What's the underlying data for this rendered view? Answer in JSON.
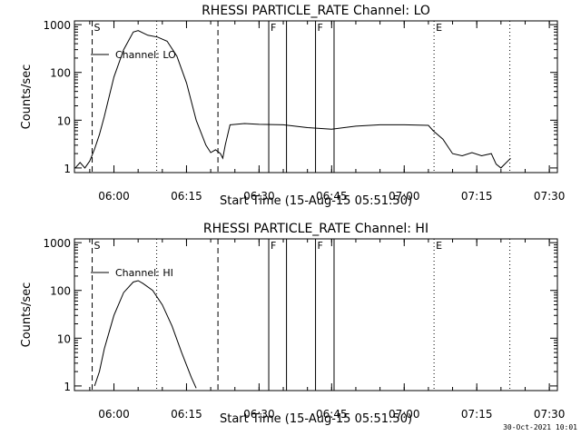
{
  "chart_data": [
    {
      "type": "line",
      "title": "RHESSI PARTICLE_RATE Channel: LO",
      "xlabel": "Start Time (15-Aug-15 05:51:50)",
      "ylabel": "Counts/sec",
      "yscale": "log",
      "xlim": [
        "05:51:50",
        "07:31:40"
      ],
      "ylim": [
        0.8,
        1200
      ],
      "x_ticks": [
        "06:00",
        "06:15",
        "06:30",
        "06:45",
        "07:00",
        "07:15",
        "07:30"
      ],
      "y_ticks": [
        "1",
        "10",
        "100",
        "1000"
      ],
      "legend": "Channel: LO",
      "event_markers": [
        {
          "label": "S",
          "time": "05:55:30",
          "style": "dashed"
        },
        {
          "label": "",
          "time": "06:08:50",
          "style": "dotted"
        },
        {
          "label": "",
          "time": "06:21:30",
          "style": "dashed"
        },
        {
          "label": "F",
          "time": "06:32:00",
          "style": "solid"
        },
        {
          "label": "",
          "time": "06:35:40",
          "style": "solid"
        },
        {
          "label": "F",
          "time": "06:41:40",
          "style": "solid"
        },
        {
          "label": "",
          "time": "06:45:30",
          "style": "solid"
        },
        {
          "label": "E",
          "time": "07:06:10",
          "style": "dotted"
        },
        {
          "label": "",
          "time": "07:21:50",
          "style": "dotted"
        }
      ],
      "series": [
        {
          "name": "Channel: LO",
          "x": [
            "05:52",
            "05:53",
            "05:54",
            "05:55",
            "05:56",
            "05:57",
            "05:58",
            "06:00",
            "06:02",
            "06:04",
            "06:05",
            "06:07",
            "06:09",
            "06:11",
            "06:13",
            "06:15",
            "06:17",
            "06:19",
            "06:20",
            "06:21",
            "06:22",
            "06:22:30",
            "06:23",
            "06:24",
            "06:27",
            "06:30",
            "06:35",
            "06:40",
            "06:45",
            "06:50",
            "06:55",
            "07:00",
            "07:05",
            "07:06",
            "07:08",
            "07:10",
            "07:12",
            "07:14",
            "07:16",
            "07:18",
            "07:19",
            "07:20",
            "07:22"
          ],
          "values": [
            1,
            1.3,
            1,
            1.4,
            2.5,
            5,
            12,
            80,
            300,
            700,
            750,
            600,
            550,
            450,
            220,
            60,
            10,
            3,
            2.1,
            2.4,
            2,
            1.6,
            3,
            8,
            8.5,
            8.2,
            8,
            7,
            6.5,
            7.5,
            8,
            8,
            7.8,
            6,
            4,
            2,
            1.8,
            2.1,
            1.8,
            2,
            1.2,
            1,
            1.6
          ]
        }
      ]
    },
    {
      "type": "line",
      "title": "RHESSI PARTICLE_RATE Channel: HI",
      "xlabel": "Start Time (15-Aug-15 05:51:50)",
      "ylabel": "Counts/sec",
      "yscale": "log",
      "xlim": [
        "05:51:50",
        "07:31:40"
      ],
      "ylim": [
        0.8,
        1200
      ],
      "x_ticks": [
        "06:00",
        "06:15",
        "06:30",
        "06:45",
        "07:00",
        "07:15",
        "07:30"
      ],
      "y_ticks": [
        "1",
        "10",
        "100",
        "1000"
      ],
      "legend": "Channel: HI",
      "event_markers": [
        {
          "label": "S",
          "time": "05:55:30",
          "style": "dashed"
        },
        {
          "label": "",
          "time": "06:08:50",
          "style": "dotted"
        },
        {
          "label": "",
          "time": "06:21:30",
          "style": "dashed"
        },
        {
          "label": "F",
          "time": "06:32:00",
          "style": "solid"
        },
        {
          "label": "",
          "time": "06:35:40",
          "style": "solid"
        },
        {
          "label": "F",
          "time": "06:41:40",
          "style": "solid"
        },
        {
          "label": "",
          "time": "06:45:30",
          "style": "solid"
        },
        {
          "label": "E",
          "time": "07:06:10",
          "style": "dotted"
        },
        {
          "label": "",
          "time": "07:21:50",
          "style": "dotted"
        }
      ],
      "series": [
        {
          "name": "Channel: HI",
          "x": [
            "05:56",
            "05:57",
            "05:58",
            "06:00",
            "06:02",
            "06:04",
            "06:05",
            "06:06",
            "06:08",
            "06:10",
            "06:12",
            "06:14",
            "06:16",
            "06:17"
          ],
          "values": [
            1,
            2,
            6,
            30,
            90,
            150,
            160,
            140,
            100,
            50,
            18,
            5,
            1.5,
            0.9
          ]
        }
      ]
    }
  ],
  "footer": {
    "stamp": "30-Oct-2021 10:01"
  }
}
